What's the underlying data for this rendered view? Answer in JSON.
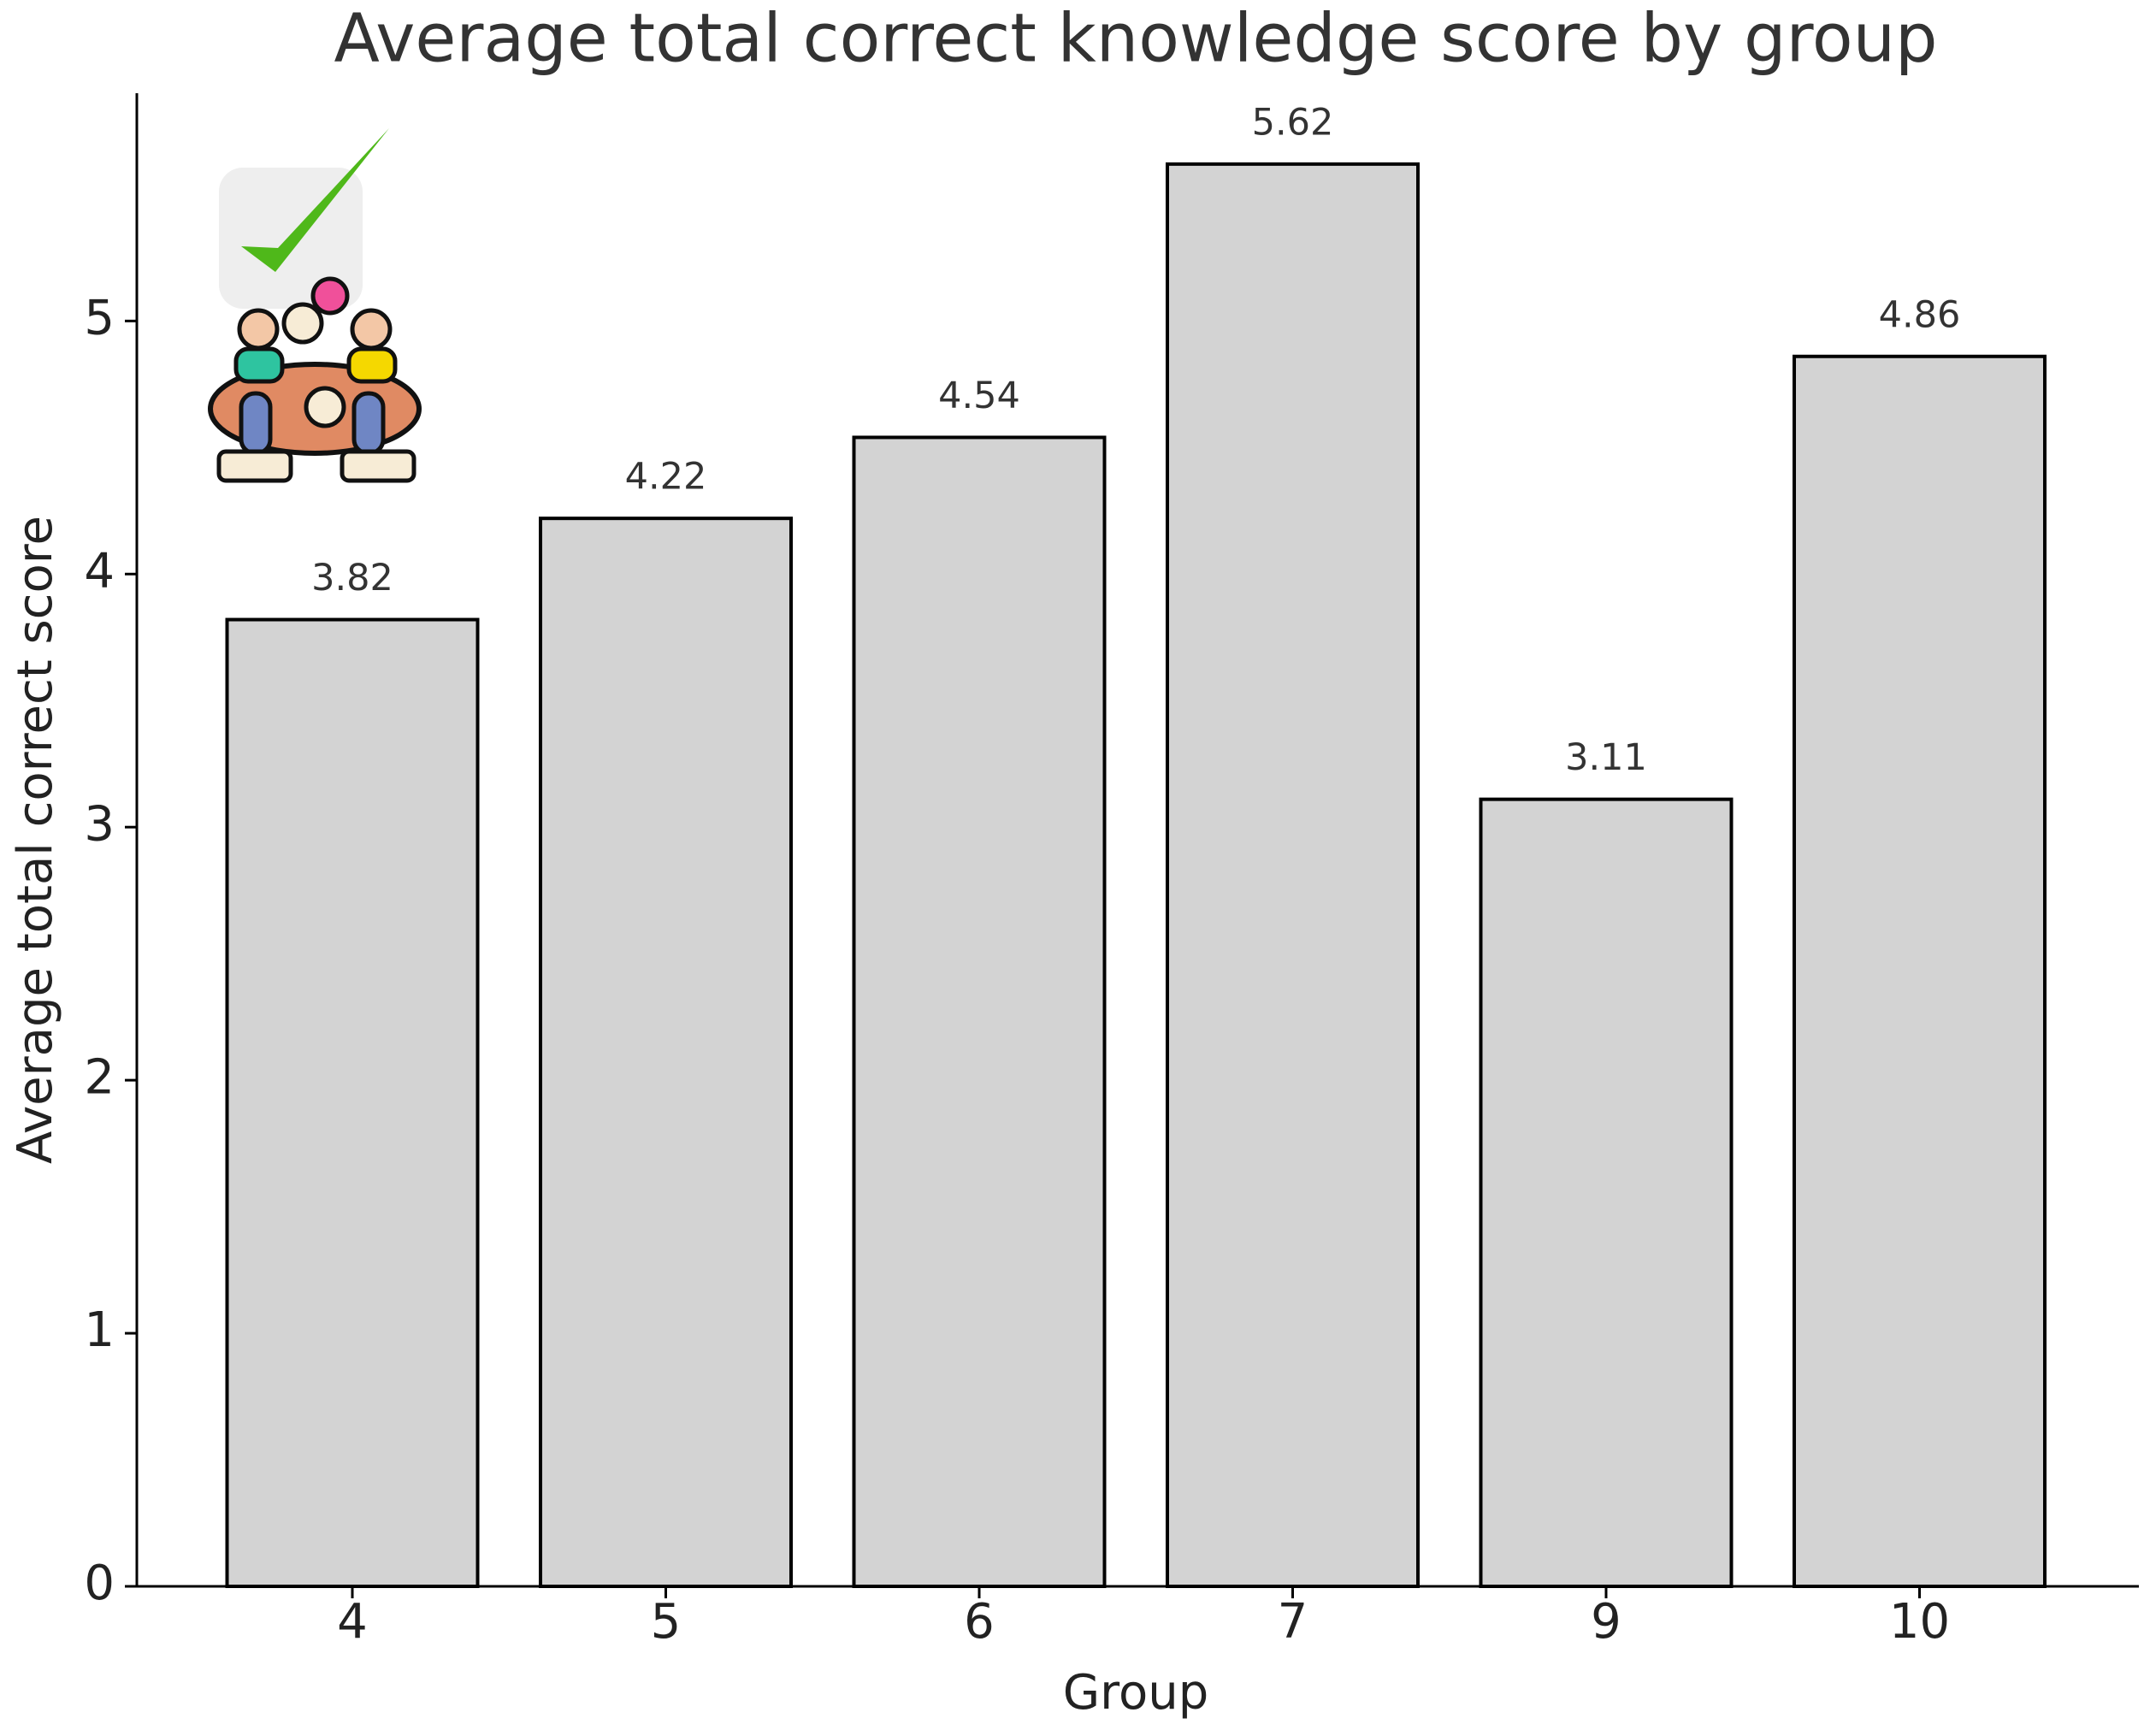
{
  "chart_data": {
    "type": "bar",
    "title": "Average total correct knowledge score by group",
    "x_label": "Group",
    "y_label": "Average total correct score",
    "categories": [
      "4",
      "5",
      "6",
      "7",
      "9",
      "10"
    ],
    "values": [
      3.82,
      4.22,
      4.54,
      5.62,
      3.11,
      4.86
    ],
    "color": "#d3d3d3",
    "edge_color": "#000000",
    "ylim": [
      0,
      5.9
    ],
    "yticks": [
      0,
      1,
      2,
      3,
      4,
      5
    ],
    "grid": false
  }
}
